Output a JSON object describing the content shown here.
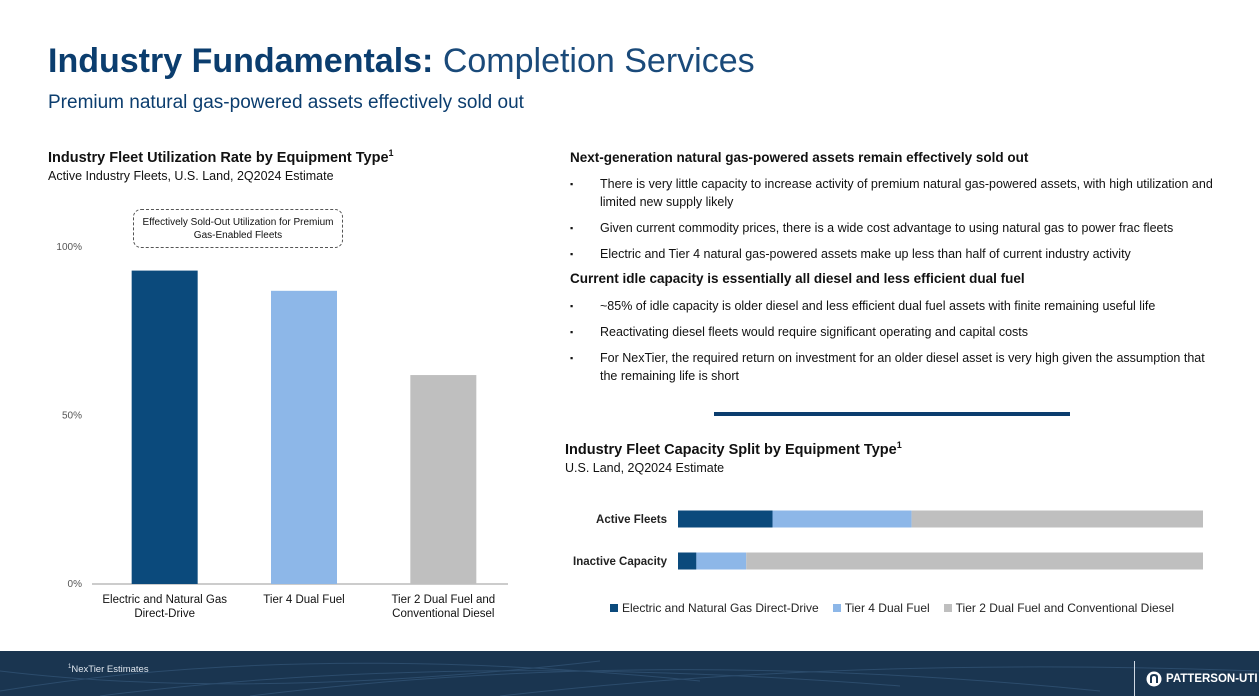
{
  "header": {
    "title_bold": "Industry Fundamentals:",
    "title_light": "Completion Services",
    "subtitle": "Premium natural gas-powered assets effectively sold out"
  },
  "left_chart": {
    "title": "Industry Fleet Utilization Rate by Equipment Type",
    "title_sup": "1",
    "subtitle": "Active Industry Fleets, U.S. Land, 2Q2024 Estimate",
    "callout": "Effectively Sold-Out Utilization for Premium Gas-Enabled Fleets"
  },
  "right": {
    "section1_head": "Next-generation natural gas-powered assets remain effectively sold out",
    "section1_bullets": [
      "There is very little capacity to increase activity of premium natural gas-powered assets, with high utilization and limited new supply likely",
      "Given current commodity prices, there is a wide cost advantage to using natural gas to power frac fleets",
      "Electric and Tier 4 natural gas-powered assets make up less than half of current industry activity"
    ],
    "section2_head": "Current idle capacity is essentially all diesel and less efficient dual fuel",
    "section2_bullets": [
      "~85% of idle capacity is older diesel and less efficient dual fuel assets with finite remaining useful life",
      "Reactivating diesel fleets would require significant operating and capital costs",
      "For NexTier, the required return on investment for an older diesel asset is very high given the assumption that the remaining life is short"
    ]
  },
  "right_chart": {
    "title": "Industry Fleet Capacity Split by Equipment Type",
    "title_sup": "1",
    "subtitle": "U.S. Land, 2Q2024 Estimate"
  },
  "legend": [
    {
      "label": "Electric and Natural Gas Direct-Drive",
      "color": "#0b4a7c"
    },
    {
      "label": "Tier 4 Dual Fuel",
      "color": "#8db7e8"
    },
    {
      "label": "Tier 2 Dual Fuel and Conventional Diesel",
      "color": "#bfbfbf"
    }
  ],
  "footer": {
    "footnote_sup": "1",
    "footnote": "NexTier Estimates",
    "logo_text": "PATTERSON-UTI"
  },
  "chart_data": [
    {
      "type": "bar",
      "title": "Industry Fleet Utilization Rate by Equipment Type",
      "categories": [
        "Electric and Natural Gas Direct-Drive",
        "Tier 4 Dual Fuel",
        "Tier 2 Dual Fuel and Conventional Diesel"
      ],
      "category_lines": [
        [
          "Electric and Natural Gas",
          "Direct-Drive"
        ],
        [
          "Tier 4 Dual Fuel"
        ],
        [
          "Tier 2 Dual Fuel and",
          "Conventional Diesel"
        ]
      ],
      "values": [
        93,
        87,
        62
      ],
      "colors": [
        "#0b4a7c",
        "#8db7e8",
        "#bfbfbf"
      ],
      "ylim": [
        0,
        100
      ],
      "yticks": [
        0,
        50,
        100
      ],
      "ytick_labels": [
        "0%",
        "50%",
        "100%"
      ],
      "grid": false
    },
    {
      "type": "bar",
      "orientation": "horizontal",
      "stacked": true,
      "title": "Industry Fleet Capacity Split by Equipment Type",
      "categories": [
        "Active Fleets",
        "Inactive Capacity"
      ],
      "series": [
        {
          "name": "Electric and Natural Gas Direct-Drive",
          "values": [
            18,
            3.5
          ],
          "color": "#0b4a7c"
        },
        {
          "name": "Tier 4 Dual Fuel",
          "values": [
            26.5,
            9.5
          ],
          "color": "#8db7e8"
        },
        {
          "name": "Tier 2 Dual Fuel and Conventional Diesel",
          "values": [
            55.5,
            87
          ],
          "color": "#bfbfbf"
        }
      ],
      "xlim": [
        0,
        100
      ],
      "legend": "bottom"
    }
  ]
}
